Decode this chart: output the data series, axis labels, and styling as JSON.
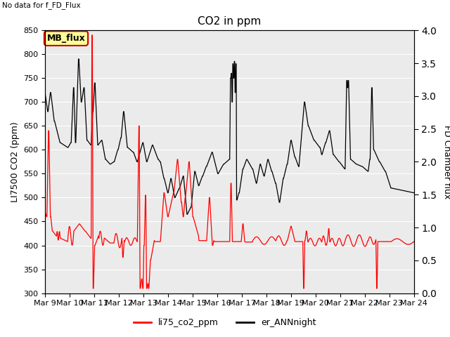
{
  "title": "CO2 in ppm",
  "note": "No data for f_FD_Flux",
  "ylabel_left": "LI7500 CO2 (ppm)",
  "ylabel_right": "FD Chamber flux",
  "ylim_left": [
    300,
    850
  ],
  "ylim_right": [
    0.0,
    4.0
  ],
  "yticks_left": [
    300,
    350,
    400,
    450,
    500,
    550,
    600,
    650,
    700,
    750,
    800,
    850
  ],
  "yticks_right": [
    0.0,
    0.5,
    1.0,
    1.5,
    2.0,
    2.5,
    3.0,
    3.5,
    4.0
  ],
  "xtick_labels": [
    "Mar 9",
    "Mar 10",
    "Mar 11",
    "Mar 12",
    "Mar 13",
    "Mar 14",
    "Mar 15",
    "Mar 16",
    "Mar 17",
    "Mar 18",
    "Mar 19",
    "Mar 20",
    "Mar 21",
    "Mar 22",
    "Mar 23",
    "Mar 24"
  ],
  "line_red_color": "#ff0000",
  "line_black_color": "#000000",
  "plot_bg": "#ebebeb",
  "legend_label_red": "li75_co2_ppm",
  "legend_label_black": "er_ANNnight",
  "mb_flux_label": "MB_flux",
  "mb_flux_bg": "#ffff99",
  "mb_flux_border": "#cc0000"
}
